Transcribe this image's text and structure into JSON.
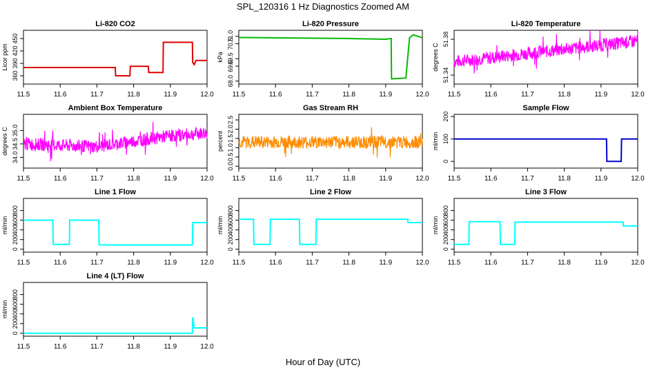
{
  "title": "SPL_120316  1 Hz Diagnostics Zoomed AM",
  "xlabel": "Hour of Day (UTC)",
  "chart_data": [
    {
      "type": "line",
      "title": "Li-820 CO2",
      "ylabel": "Licor ppm",
      "color": "#dd0000",
      "xlim": [
        11.5,
        12.0
      ],
      "ylim": [
        340,
        470
      ],
      "xticks": [
        "11.5",
        "11.6",
        "11.7",
        "11.8",
        "11.9",
        "12.0"
      ],
      "yticks": [
        {
          "v": 360,
          "label": "360"
        },
        {
          "v": 390,
          "label": "390"
        },
        {
          "v": 420,
          "label": "420"
        },
        {
          "v": 450,
          "label": "450"
        }
      ],
      "series": [
        {
          "x": [
            11.5,
            11.75,
            11.751,
            11.79,
            11.791,
            11.84,
            11.841,
            11.88,
            11.881,
            11.96,
            11.961,
            11.965,
            11.97,
            12.0
          ],
          "y": [
            380,
            380,
            360,
            360,
            383,
            383,
            368,
            368,
            441,
            441,
            392,
            387,
            397,
            397
          ]
        }
      ]
    },
    {
      "type": "line",
      "title": "Li-820 Pressure",
      "ylabel": "kPa",
      "color": "#00bb00",
      "xlim": [
        11.5,
        12.0
      ],
      "ylim": [
        67.8,
        71.4
      ],
      "xticks": [
        "11.5",
        "11.6",
        "11.7",
        "11.8",
        "11.9",
        "12.0"
      ],
      "yticks": [
        {
          "v": 68.0,
          "label": "68.0"
        },
        {
          "v": 69.0,
          "label": "69.0"
        },
        {
          "v": 69.5,
          "label": "69.5"
        },
        {
          "v": 70.5,
          "label": "70.5"
        },
        {
          "v": 71.0,
          "label": "71.0"
        }
      ],
      "series": [
        {
          "x": [
            11.5,
            11.8,
            11.9,
            11.915,
            11.916,
            11.955,
            11.965,
            11.975,
            12.0
          ],
          "y": [
            70.92,
            70.85,
            70.8,
            70.85,
            68.15,
            68.2,
            70.9,
            71.1,
            70.9
          ]
        }
      ]
    },
    {
      "type": "line",
      "title": "Li-820 Temperature",
      "ylabel": "degrees C",
      "color": "#ff00ff",
      "xlim": [
        11.5,
        12.0
      ],
      "ylim": [
        51.33,
        51.39
      ],
      "xticks": [
        "11.5",
        "11.6",
        "11.7",
        "11.8",
        "11.9",
        "12.0"
      ],
      "yticks": [
        {
          "v": 51.34,
          "label": "51.34"
        },
        {
          "v": 51.38,
          "label": "51.38"
        }
      ],
      "series": [
        {
          "x": [
            11.5,
            12.0
          ],
          "y": [
            51.355,
            51.378
          ],
          "band": true
        }
      ]
    },
    {
      "type": "line",
      "title": "Ambient Box Temperature",
      "ylabel": "degrees C",
      "color": "#ff00ff",
      "xlim": [
        11.5,
        12.0
      ],
      "ylim": [
        33.6,
        35.6
      ],
      "xticks": [
        "11.5",
        "11.6",
        "11.7",
        "11.8",
        "11.9",
        "12.0"
      ],
      "yticks": [
        {
          "v": 34.0,
          "label": "34.0"
        },
        {
          "v": 34.5,
          "label": "34.5"
        },
        {
          "v": 35.0,
          "label": "35.0"
        }
      ],
      "series": [
        {
          "x": [
            11.5,
            11.7,
            11.9,
            12.0
          ],
          "y": [
            34.5,
            34.4,
            34.8,
            34.9
          ],
          "band": true
        }
      ]
    },
    {
      "type": "line",
      "title": "Gas Stream RH",
      "ylabel": "percent",
      "color": "#ff8c00",
      "xlim": [
        11.5,
        12.0
      ],
      "ylim": [
        -0.1,
        2.8
      ],
      "xticks": [
        "11.5",
        "11.6",
        "11.7",
        "11.8",
        "11.9",
        "12.0"
      ],
      "yticks": [
        {
          "v": 0.0,
          "label": "0.0"
        },
        {
          "v": 0.5,
          "label": "0.5"
        },
        {
          "v": 1.0,
          "label": "1.0"
        },
        {
          "v": 1.5,
          "label": "1.5"
        },
        {
          "v": 2.0,
          "label": "2.0"
        },
        {
          "v": 2.5,
          "label": "2.5"
        }
      ],
      "series": [
        {
          "x": [
            11.5,
            12.0
          ],
          "y": [
            1.3,
            1.3
          ],
          "band": true
        }
      ]
    },
    {
      "type": "line",
      "title": "Sample Flow",
      "ylabel": "ml/min",
      "color": "#0000cc",
      "xlim": [
        11.5,
        12.0
      ],
      "ylim": [
        -30,
        210
      ],
      "xticks": [
        "11.5",
        "11.6",
        "11.7",
        "11.8",
        "11.9",
        "12.0"
      ],
      "yticks": [
        {
          "v": 0,
          "label": "0"
        },
        {
          "v": 100,
          "label": "100"
        },
        {
          "v": 200,
          "label": "200"
        }
      ],
      "series": [
        {
          "x": [
            11.5,
            11.915,
            11.916,
            11.955,
            11.956,
            12.0
          ],
          "y": [
            100,
            100,
            0,
            0,
            100,
            100
          ]
        }
      ]
    },
    {
      "type": "line",
      "title": "Line 1 Flow",
      "ylabel": "ml/min",
      "color": "#00ffff",
      "xlim": [
        11.5,
        12.0
      ],
      "ylim": [
        -60,
        1050
      ],
      "xticks": [
        "11.5",
        "11.6",
        "11.7",
        "11.8",
        "11.9",
        "12.0"
      ],
      "yticks": [
        {
          "v": 0,
          "label": "0"
        },
        {
          "v": 200,
          "label": "200"
        },
        {
          "v": 400,
          "label": "400"
        },
        {
          "v": 600,
          "label": "600"
        },
        {
          "v": 800,
          "label": "800"
        }
      ],
      "series": [
        {
          "x": [
            11.5,
            11.58,
            11.581,
            11.625,
            11.626,
            11.705,
            11.706,
            11.96,
            11.961,
            12.0
          ],
          "y": [
            600,
            600,
            100,
            100,
            600,
            600,
            90,
            90,
            550,
            550
          ]
        }
      ]
    },
    {
      "type": "line",
      "title": "Line 2 Flow",
      "ylabel": "ml/min",
      "color": "#00ffff",
      "xlim": [
        11.5,
        12.0
      ],
      "ylim": [
        -60,
        1050
      ],
      "xticks": [
        "11.5",
        "11.6",
        "11.7",
        "11.8",
        "11.9",
        "12.0"
      ],
      "yticks": [
        {
          "v": 0,
          "label": "0"
        },
        {
          "v": 200,
          "label": "200"
        },
        {
          "v": 400,
          "label": "400"
        },
        {
          "v": 600,
          "label": "600"
        },
        {
          "v": 800,
          "label": "800"
        }
      ],
      "series": [
        {
          "x": [
            11.5,
            11.54,
            11.541,
            11.585,
            11.586,
            11.665,
            11.666,
            11.71,
            11.711,
            11.96,
            11.961,
            12.0
          ],
          "y": [
            620,
            620,
            100,
            100,
            620,
            620,
            100,
            100,
            620,
            620,
            550,
            550
          ]
        }
      ]
    },
    {
      "type": "line",
      "title": "Line 3 Flow",
      "ylabel": "ml/min",
      "color": "#00ffff",
      "xlim": [
        11.5,
        12.0
      ],
      "ylim": [
        -60,
        1050
      ],
      "xticks": [
        "11.5",
        "11.6",
        "11.7",
        "11.8",
        "11.9",
        "12.0"
      ],
      "yticks": [
        {
          "v": 0,
          "label": "0"
        },
        {
          "v": 200,
          "label": "200"
        },
        {
          "v": 400,
          "label": "400"
        },
        {
          "v": 600,
          "label": "600"
        },
        {
          "v": 800,
          "label": "800"
        }
      ],
      "series": [
        {
          "x": [
            11.5,
            11.54,
            11.541,
            11.625,
            11.626,
            11.665,
            11.666,
            11.96,
            11.961,
            12.0
          ],
          "y": [
            100,
            100,
            570,
            570,
            100,
            100,
            560,
            560,
            480,
            480
          ]
        }
      ]
    },
    {
      "type": "line",
      "title": "Line 4 (LT) Flow",
      "ylabel": "ml/min",
      "color": "#00ffff",
      "xlim": [
        11.5,
        12.0
      ],
      "ylim": [
        -60,
        1050
      ],
      "xticks": [
        "11.5",
        "11.6",
        "11.7",
        "11.8",
        "11.9",
        "12.0"
      ],
      "yticks": [
        {
          "v": 0,
          "label": "0"
        },
        {
          "v": 200,
          "label": "200"
        },
        {
          "v": 400,
          "label": "400"
        },
        {
          "v": 600,
          "label": "600"
        },
        {
          "v": 800,
          "label": "800"
        }
      ],
      "series": [
        {
          "x": [
            11.5,
            11.96,
            11.961,
            11.965,
            11.966,
            12.0
          ],
          "y": [
            0,
            0,
            330,
            110,
            110,
            110
          ]
        }
      ]
    }
  ]
}
